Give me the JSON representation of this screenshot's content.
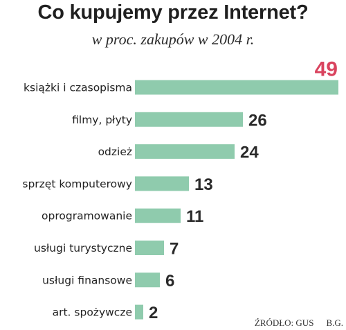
{
  "chart_data": {
    "type": "bar",
    "title": "Co kupujemy przez Internet?",
    "subtitle": "w proc. zakupów w 2004 r.",
    "categories": [
      "książki i czasopisma",
      "filmy, płyty",
      "odzież",
      "sprzęt komputerowy",
      "oprogramowanie",
      "usługi turystyczne",
      "usługi finansowe",
      "art. spożywcze"
    ],
    "values": [
      49,
      26,
      24,
      13,
      11,
      7,
      6,
      2
    ],
    "value_labels": [
      "49",
      "26",
      "24",
      "13",
      "11",
      "7",
      "6",
      "2"
    ],
    "orientation": "horizontal",
    "xlim": [
      0,
      49
    ],
    "grid": false,
    "colors": {
      "bar": "#8fcbad",
      "highlight_value": "#d9435e",
      "value": "#2a2a2a",
      "text": "#222222"
    }
  },
  "source": {
    "text": "ŹRÓDŁO: GUS",
    "author": "B.G."
  }
}
